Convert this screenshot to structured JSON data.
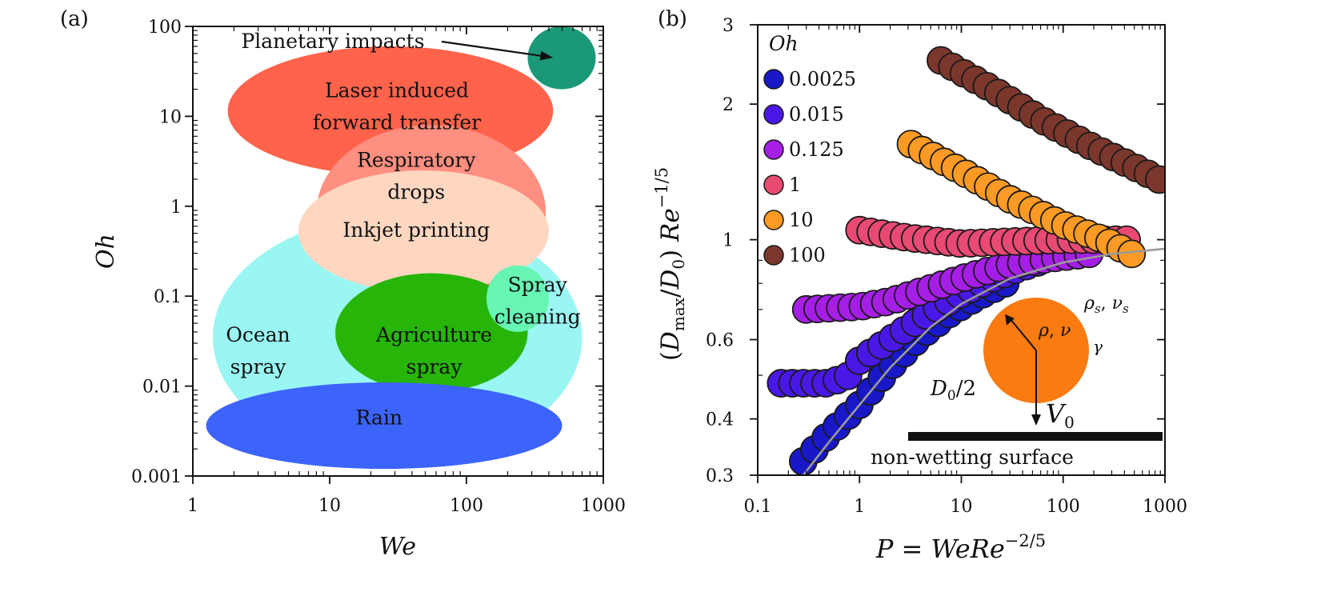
{
  "chart_data": [
    {
      "type": "ellipse-regions",
      "panel_label": "(a)",
      "xlabel": "We",
      "ylabel": "Oh",
      "xscale": "log",
      "yscale": "log",
      "xlim": [
        1,
        1000
      ],
      "ylim": [
        0.001,
        100
      ],
      "xticks": [
        {
          "value": 1,
          "label": "1"
        },
        {
          "value": 10,
          "label": "10"
        },
        {
          "value": 100,
          "label": "100"
        },
        {
          "value": 1000,
          "label": "1000"
        }
      ],
      "yticks": [
        {
          "value": 0.001,
          "label": "0.001"
        },
        {
          "value": 0.01,
          "label": "0.01"
        },
        {
          "value": 0.1,
          "label": "0.1"
        },
        {
          "value": 1,
          "label": "1"
        },
        {
          "value": 10,
          "label": "10"
        },
        {
          "value": 100,
          "label": "100"
        }
      ],
      "regions": [
        {
          "key": "ocean",
          "lines": [
            "Ocean",
            "spray"
          ],
          "we_range": [
            1.4,
            700
          ],
          "oh_range": [
            0.0015,
            0.8
          ],
          "label_at": [
            3,
            0.025
          ],
          "color": "#9af6f2",
          "text_color": "#111111"
        },
        {
          "key": "laser",
          "lines": [
            "Laser induced",
            "forward transfer"
          ],
          "we_range": [
            1.8,
            430
          ],
          "oh_range": [
            2.2,
            60
          ],
          "label_at": [
            31,
            13
          ],
          "color": "#ff634c",
          "text_color": "#111111"
        },
        {
          "key": "respiratory",
          "lines": [
            "Respiratory",
            "drops"
          ],
          "we_range": [
            8,
            380
          ],
          "oh_range": [
            0.09,
            8
          ],
          "label_at": [
            43,
            2.2
          ],
          "color": "#ff8f80",
          "text_color": "#111111"
        },
        {
          "key": "inkjet",
          "lines": [
            "Inkjet printing"
          ],
          "we_range": [
            5.9,
            400
          ],
          "oh_range": [
            0.11,
            2.5
          ],
          "label_at": [
            43,
            0.55
          ],
          "color": "#ffd7c1",
          "text_color": "#111111"
        },
        {
          "key": "agriculture",
          "lines": [
            "Agriculture",
            "spray"
          ],
          "we_range": [
            11,
            280
          ],
          "oh_range": [
            0.0085,
            0.18
          ],
          "label_at": [
            58,
            0.025
          ],
          "color": "#27b50a",
          "text_color": "#111111"
        },
        {
          "key": "spray_cleaning",
          "lines": [
            "Spray",
            "cleaning"
          ],
          "we_range": [
            140,
            400
          ],
          "oh_range": [
            0.04,
            0.22
          ],
          "label_at": [
            330,
            0.09
          ],
          "color": "#67f5b4",
          "text_color": "#111111"
        },
        {
          "key": "rain",
          "lines": [
            "Rain"
          ],
          "we_range": [
            1.25,
            500
          ],
          "oh_range": [
            0.0012,
            0.011
          ],
          "label_at": [
            23,
            0.0045
          ],
          "color": "#3c63fa",
          "text_color": "#ffffff"
        },
        {
          "key": "planetary",
          "lines": [],
          "we_range": [
            280,
            880
          ],
          "oh_range": [
            20,
            100
          ],
          "label_at": [
            400,
            45
          ],
          "color": "#1b9878",
          "text_color": "#111111"
        }
      ],
      "annotation": {
        "text": "Planetary impacts",
        "arrow_to": [
          430,
          45
        ]
      }
    },
    {
      "type": "scatter",
      "panel_label": "(b)",
      "xlabel_parts": {
        "lhs": "P",
        "eq": " = ",
        "rhs": "WeRe",
        "exp": "−2/5"
      },
      "ylabel_parts": {
        "open": "(",
        "D": "D",
        "max": "max",
        "slash": "/",
        "D0": "D",
        "zero": "0",
        "close": ") ",
        "Re": "Re",
        "exp": "−1/5"
      },
      "xscale": "log",
      "yscale": "log",
      "xlim": [
        0.1,
        1000
      ],
      "ylim": [
        0.3,
        3
      ],
      "xticks": [
        {
          "value": 0.1,
          "label": "0.1"
        },
        {
          "value": 1,
          "label": "1"
        },
        {
          "value": 10,
          "label": "10"
        },
        {
          "value": 100,
          "label": "100"
        },
        {
          "value": 1000,
          "label": "1000"
        }
      ],
      "yticks": [
        {
          "value": 0.3,
          "label": "0.3"
        },
        {
          "value": 0.4,
          "label": "0.4"
        },
        {
          "value": 0.6,
          "label": "0.6"
        },
        {
          "value": 1,
          "label": "1"
        },
        {
          "value": 2,
          "label": "2"
        },
        {
          "value": 3,
          "label": "3"
        }
      ],
      "legend_title": "Oh",
      "legend_position": "top-left",
      "series": [
        {
          "name": "0.0025",
          "color": "#1818c8",
          "p_range": [
            0.28,
            27
          ],
          "points": [
            [
              0.28,
              0.322
            ],
            [
              0.5,
              0.37
            ],
            [
              1,
              0.43
            ],
            [
              2,
              0.52
            ],
            [
              4,
              0.61
            ],
            [
              8,
              0.69
            ],
            [
              15,
              0.75
            ],
            [
              27,
              0.8
            ]
          ]
        },
        {
          "name": "0.015",
          "color": "#4a18e6",
          "p_range": [
            0.17,
            56
          ],
          "points": [
            [
              0.17,
              0.48
            ],
            [
              0.5,
              0.48
            ],
            [
              0.8,
              0.5
            ],
            [
              1,
              0.54
            ],
            [
              2,
              0.6
            ],
            [
              5,
              0.69
            ],
            [
              10,
              0.76
            ],
            [
              20,
              0.82
            ],
            [
              35,
              0.86
            ],
            [
              56,
              0.89
            ]
          ]
        },
        {
          "name": "0.125",
          "color": "#a51ee6",
          "p_range": [
            0.3,
            180
          ],
          "points": [
            [
              0.3,
              0.7
            ],
            [
              1,
              0.71
            ],
            [
              2,
              0.73
            ],
            [
              5,
              0.78
            ],
            [
              10,
              0.82
            ],
            [
              30,
              0.88
            ],
            [
              80,
              0.91
            ],
            [
              180,
              0.93
            ]
          ]
        },
        {
          "name": "1",
          "color": "#e84a73",
          "p_range": [
            1,
            420
          ],
          "points": [
            [
              1,
              1.05
            ],
            [
              3,
              1.01
            ],
            [
              10,
              0.98
            ],
            [
              30,
              0.99
            ],
            [
              100,
              1.0
            ],
            [
              250,
              1.0
            ],
            [
              420,
              1.0
            ]
          ]
        },
        {
          "name": "10",
          "color": "#fb9a24",
          "p_range": [
            3.2,
            470
          ],
          "points": [
            [
              3.2,
              1.63
            ],
            [
              10,
              1.42
            ],
            [
              30,
              1.23
            ],
            [
              100,
              1.08
            ],
            [
              250,
              1.0
            ],
            [
              470,
              0.93
            ]
          ]
        },
        {
          "name": "100",
          "color": "#7b372c",
          "p_range": [
            6.3,
            880
          ],
          "points": [
            [
              6.3,
              2.5
            ],
            [
              20,
              2.16
            ],
            [
              60,
              1.85
            ],
            [
              200,
              1.6
            ],
            [
              500,
              1.45
            ],
            [
              880,
              1.36
            ]
          ]
        }
      ],
      "fit_curve": {
        "color": "#9a9a9a",
        "points": [
          [
            0.28,
            0.3
          ],
          [
            0.5,
            0.355
          ],
          [
            1,
            0.43
          ],
          [
            2,
            0.52
          ],
          [
            5,
            0.64
          ],
          [
            10,
            0.72
          ],
          [
            30,
            0.82
          ],
          [
            100,
            0.89
          ],
          [
            300,
            0.93
          ],
          [
            1000,
            0.955
          ]
        ]
      },
      "inset": {
        "substrate_label": "non-wetting surface",
        "radius_label": "D",
        "radius_sub": "0",
        "radius_rest": "/2",
        "velocity_label": "V",
        "velocity_sub": "0",
        "drop_props": {
          "rho": "ρ",
          "comma": ", ",
          "nu": "ν"
        },
        "surround_props": {
          "rho": "ρ",
          "rho_sub": "s",
          "comma": ", ",
          "nu": "ν",
          "nu_sub": "s"
        },
        "tension_label": "γ",
        "drop_color": "#f97b12"
      }
    }
  ]
}
